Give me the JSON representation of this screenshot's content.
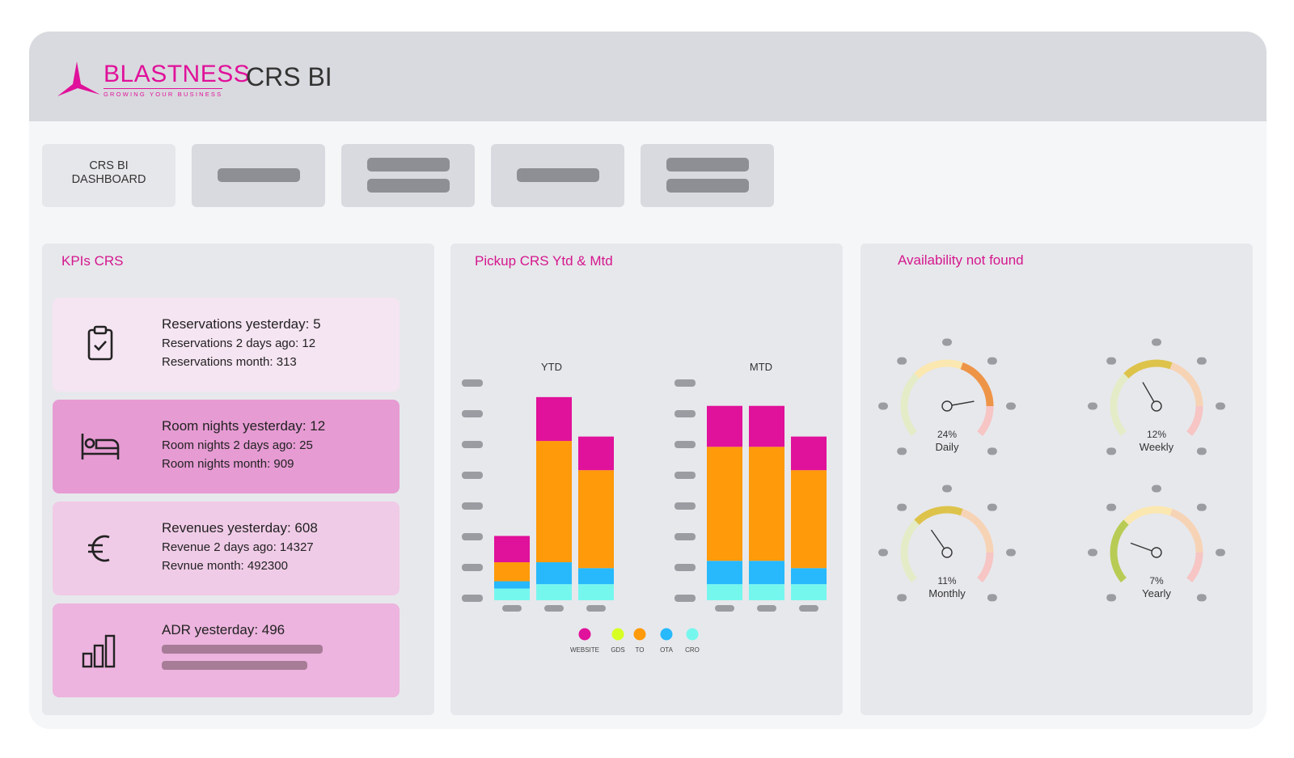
{
  "header": {
    "logo_text": "BLASTNESS",
    "logo_tagline": "GROWING YOUR BUSINESS",
    "title": "CRS BI"
  },
  "tabs": [
    {
      "label": "CRS BI\nDASHBOARD"
    }
  ],
  "kpis_panel": {
    "title": "KPIs CRS",
    "cards": [
      {
        "icon": "clipboard-check-icon",
        "line1": "Reservations yesterday: 5",
        "line2": "Reservations 2 days ago: 12",
        "line3": "Reservations month: 313",
        "color": "#f5e4f2"
      },
      {
        "icon": "bed-icon",
        "line1": "Room nights yesterday: 12",
        "line2": "Room nights 2 days ago: 25",
        "line3": "Room nights month: 909",
        "color": "#e69bd3"
      },
      {
        "icon": "euro-icon",
        "line1": "Revenues yesterday: 608",
        "line2": "Revenue 2 days ago: 14327",
        "line3": "Revnue month: 492300",
        "color": "#f0cbe7"
      },
      {
        "icon": "bar-chart-icon",
        "line1": "ADR yesterday: 496",
        "color": "#ecb4de"
      }
    ]
  },
  "pickup_panel": {
    "title": "Pickup CRS Ytd & Mtd"
  },
  "availability_panel": {
    "title": "Availability not found",
    "gauges": [
      {
        "percent": 24,
        "label": "Daily",
        "value_text": "24%"
      },
      {
        "percent": 12,
        "label": "Weekly",
        "value_text": "12%"
      },
      {
        "percent": 11,
        "label": "Monthly",
        "value_text": "11%"
      },
      {
        "percent": 7,
        "label": "Yearly",
        "value_text": "7%"
      }
    ]
  },
  "chart_data": {
    "type": "bar",
    "stacked": true,
    "groups": [
      {
        "title": "YTD",
        "bars": [
          {
            "CRO": 8,
            "OTA": 5,
            "TO": 13,
            "GDS": 0,
            "WEBSITE": 18
          },
          {
            "CRO": 11,
            "OTA": 15,
            "TO": 83,
            "GDS": 0,
            "WEBSITE": 30
          },
          {
            "CRO": 11,
            "OTA": 11,
            "TO": 67,
            "GDS": 0,
            "WEBSITE": 23
          }
        ]
      },
      {
        "title": "MTD",
        "bars": [
          {
            "CRO": 11,
            "OTA": 16,
            "TO": 78,
            "GDS": 0,
            "WEBSITE": 28
          },
          {
            "CRO": 11,
            "OTA": 16,
            "TO": 78,
            "GDS": 0,
            "WEBSITE": 28
          },
          {
            "CRO": 11,
            "OTA": 11,
            "TO": 67,
            "GDS": 0,
            "WEBSITE": 23
          }
        ]
      }
    ],
    "series": [
      {
        "name": "WEBSITE",
        "color": "#e0119a"
      },
      {
        "name": "GDS",
        "color": "#d7ff24"
      },
      {
        "name": "TO",
        "color": "#ff9a0a"
      },
      {
        "name": "OTA",
        "color": "#27b9fb"
      },
      {
        "name": "CRO",
        "color": "#76f7ee"
      }
    ],
    "ylim": [
      0,
      150
    ]
  }
}
